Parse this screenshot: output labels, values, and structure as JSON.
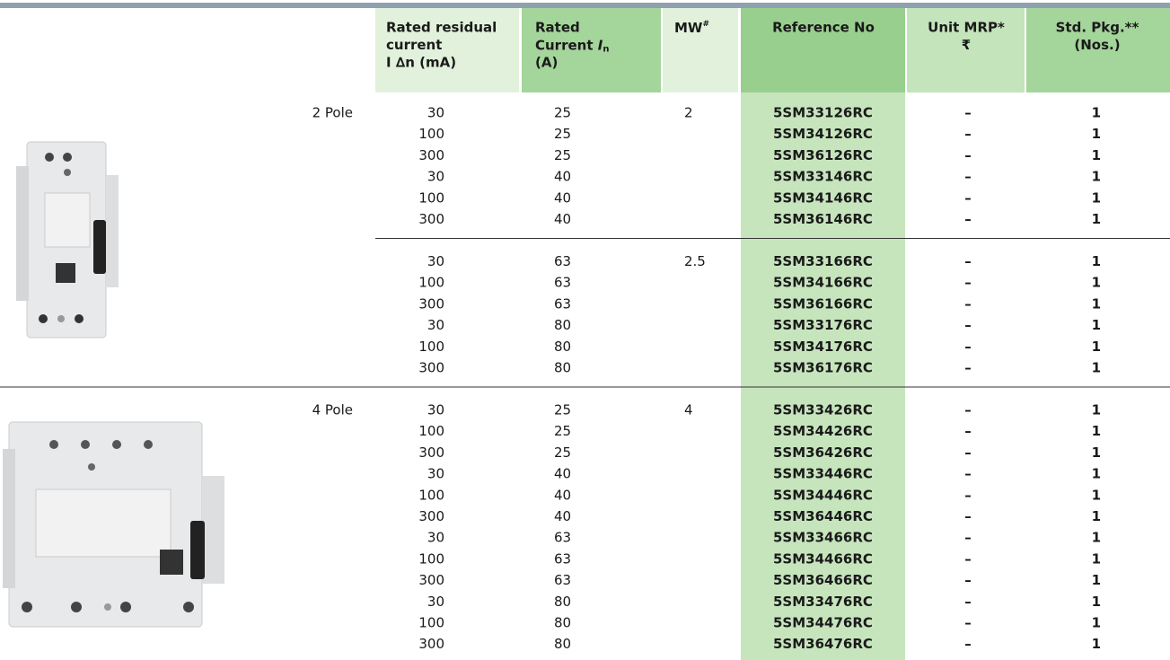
{
  "table": {
    "header": [
      {
        "lines": [
          "Rated residual",
          "current",
          "I ∆n (mA)"
        ]
      },
      {
        "lines": [
          "Rated",
          "Current "
        ],
        "symbol": "I",
        "subscript": "n",
        "unit": "(A)"
      },
      {
        "text": "MW",
        "superscript": "#"
      },
      {
        "lines": [
          "Reference No"
        ]
      },
      {
        "lines": [
          "Unit MRP*",
          "₹"
        ]
      },
      {
        "lines": [
          "Std. Pkg.**",
          "(Nos.)"
        ]
      }
    ],
    "groups": [
      {
        "label": "2 Pole",
        "blocks": [
          {
            "mw": "2",
            "rows": [
              [
                "30",
                "25",
                "5SM33126RC",
                "–",
                "1"
              ],
              [
                "100",
                "25",
                "5SM34126RC",
                "–",
                "1"
              ],
              [
                "300",
                "25",
                "5SM36126RC",
                "–",
                "1"
              ],
              [
                "30",
                "40",
                "5SM33146RC",
                "–",
                "1"
              ],
              [
                "100",
                "40",
                "5SM34146RC",
                "–",
                "1"
              ],
              [
                "300",
                "40",
                "5SM36146RC",
                "–",
                "1"
              ]
            ]
          },
          {
            "mw": "2.5",
            "rows": [
              [
                "30",
                "63",
                "5SM33166RC",
                "–",
                "1"
              ],
              [
                "100",
                "63",
                "5SM34166RC",
                "–",
                "1"
              ],
              [
                "300",
                "63",
                "5SM36166RC",
                "–",
                "1"
              ],
              [
                "30",
                "80",
                "5SM33176RC",
                "–",
                "1"
              ],
              [
                "100",
                "80",
                "5SM34176RC",
                "–",
                "1"
              ],
              [
                "300",
                "80",
                "5SM36176RC",
                "–",
                "1"
              ]
            ]
          }
        ]
      },
      {
        "label": "4 Pole",
        "blocks": [
          {
            "mw": "4",
            "rows": [
              [
                "30",
                "25",
                "5SM33426RC",
                "–",
                "1"
              ],
              [
                "100",
                "25",
                "5SM34426RC",
                "–",
                "1"
              ],
              [
                "300",
                "25",
                "5SM36426RC",
                "–",
                "1"
              ],
              [
                "30",
                "40",
                "5SM33446RC",
                "–",
                "1"
              ],
              [
                "100",
                "40",
                "5SM34446RC",
                "–",
                "1"
              ],
              [
                "300",
                "40",
                "5SM36446RC",
                "–",
                "1"
              ],
              [
                "30",
                "63",
                "5SM33466RC",
                "–",
                "1"
              ],
              [
                "100",
                "63",
                "5SM34466RC",
                "–",
                "1"
              ],
              [
                "300",
                "63",
                "5SM36466RC",
                "–",
                "1"
              ],
              [
                "30",
                "80",
                "5SM33476RC",
                "–",
                "1"
              ],
              [
                "100",
                "80",
                "5SM34476RC",
                "–",
                "1"
              ],
              [
                "300",
                "80",
                "5SM36476RC",
                "–",
                "1"
              ]
            ]
          }
        ]
      }
    ]
  }
}
